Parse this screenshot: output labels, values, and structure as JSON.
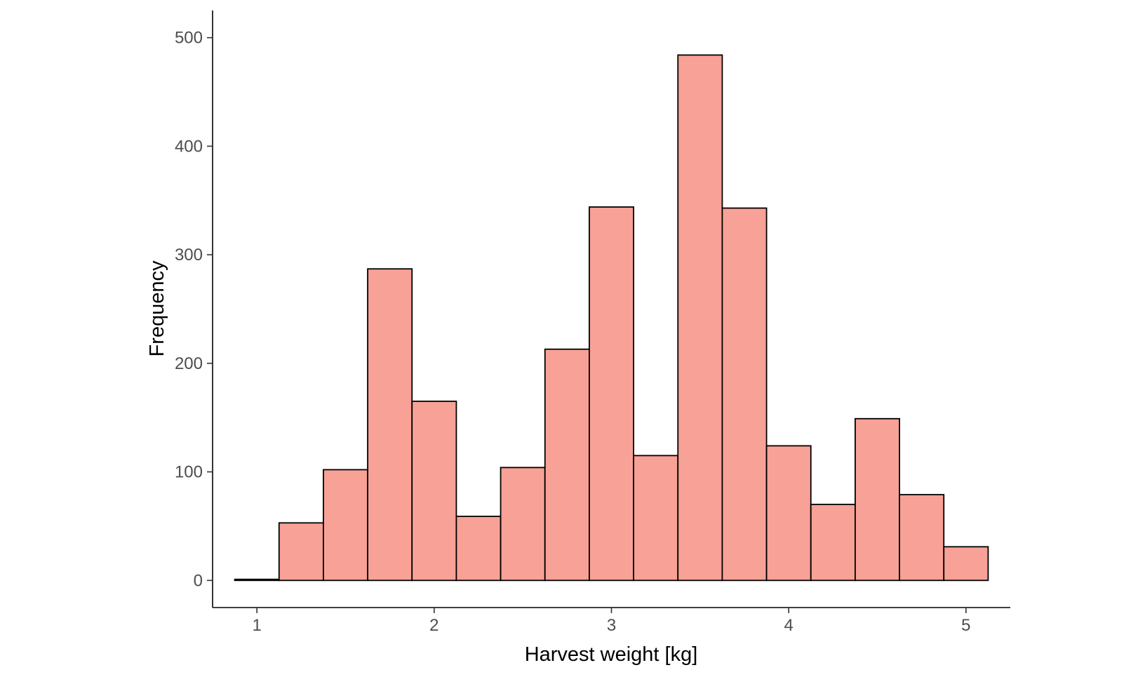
{
  "chart_data": {
    "type": "bar",
    "title": "",
    "xlabel": "Harvest weight [kg]",
    "ylabel": "Frequency",
    "xlim": [
      0.75,
      5.25
    ],
    "ylim": [
      -25,
      525
    ],
    "x_ticks": [
      "1",
      "2",
      "3",
      "4",
      "5"
    ],
    "y_ticks": [
      "0",
      "100",
      "200",
      "300",
      "400",
      "500"
    ],
    "bin_width": 0.25,
    "bins": [
      {
        "x": 1.0,
        "count": 1
      },
      {
        "x": 1.25,
        "count": 53
      },
      {
        "x": 1.5,
        "count": 102
      },
      {
        "x": 1.75,
        "count": 287
      },
      {
        "x": 2.0,
        "count": 165
      },
      {
        "x": 2.25,
        "count": 59
      },
      {
        "x": 2.5,
        "count": 104
      },
      {
        "x": 2.75,
        "count": 213
      },
      {
        "x": 3.0,
        "count": 344
      },
      {
        "x": 3.25,
        "count": 115
      },
      {
        "x": 3.5,
        "count": 484
      },
      {
        "x": 3.75,
        "count": 343
      },
      {
        "x": 4.0,
        "count": 124
      },
      {
        "x": 4.25,
        "count": 70
      },
      {
        "x": 4.5,
        "count": 149
      },
      {
        "x": 4.75,
        "count": 79
      },
      {
        "x": 5.0,
        "count": 31
      }
    ],
    "grid": false,
    "legend": "none",
    "bar_fill": "#f8a196",
    "bar_outline": "#000000"
  }
}
